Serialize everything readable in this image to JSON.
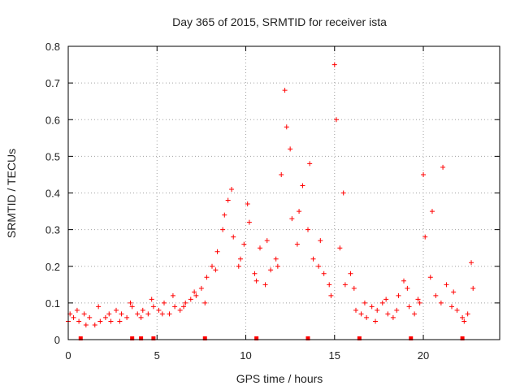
{
  "chart_data": {
    "type": "scatter",
    "title": "Day 365 of 2015, SRMTID for receiver ista",
    "xlabel": "GPS time / hours",
    "ylabel": "SRMTID / TECUs",
    "xlim": [
      0,
      24.3
    ],
    "ylim": [
      0,
      0.8
    ],
    "grid": true,
    "legend": "none",
    "x_ticks": [
      0,
      5,
      10,
      15,
      20
    ],
    "x_tick_labels": [
      "0",
      "5",
      "10",
      "15",
      "20"
    ],
    "y_ticks": [
      0,
      0.1,
      0.2,
      0.3,
      0.4,
      0.5,
      0.6,
      0.7,
      0.8
    ],
    "y_tick_labels": [
      "0",
      "0.1",
      "0.2",
      "0.3",
      "0.4",
      "0.5",
      "0.6",
      "0.7",
      "0.8"
    ],
    "marker_color": "#ff0000",
    "marker": "+",
    "series": [
      {
        "name": "SRMTID",
        "x": [
          0.0,
          0.3,
          0.6,
          0.9,
          1.2,
          1.5,
          1.8,
          2.1,
          2.4,
          2.7,
          3.0,
          3.3,
          3.6,
          3.9,
          4.2,
          4.5,
          4.8,
          5.1,
          5.4,
          5.7,
          6.0,
          6.3,
          6.6,
          6.9,
          7.2,
          7.5,
          7.8,
          8.1,
          8.4,
          8.7,
          9.0,
          9.3,
          9.6,
          9.9,
          10.2,
          10.5,
          10.8,
          11.1,
          11.4,
          11.7,
          12.0,
          12.3,
          12.6,
          12.9,
          13.2,
          13.5,
          13.8,
          14.1,
          14.4,
          14.7,
          15.0,
          15.3,
          15.6,
          15.9,
          16.2,
          16.5,
          16.8,
          17.1,
          17.4,
          17.7,
          18.0,
          18.3,
          18.6,
          18.9,
          19.2,
          19.5,
          19.8,
          20.1,
          20.4,
          20.7,
          21.0,
          21.3,
          21.6,
          21.9,
          22.2,
          22.5,
          22.8,
          0.1,
          0.5,
          1.0,
          1.7,
          2.3,
          2.9,
          3.5,
          4.1,
          4.7,
          5.3,
          5.9,
          6.5,
          7.1,
          7.7,
          8.3,
          8.8,
          9.2,
          9.7,
          10.1,
          10.6,
          11.2,
          11.8,
          12.2,
          12.5,
          13.0,
          13.6,
          14.2,
          14.8,
          15.1,
          15.5,
          16.1,
          16.7,
          17.3,
          17.9,
          18.5,
          19.1,
          19.7,
          20.0,
          20.5,
          21.1,
          21.7,
          22.3,
          22.7
        ],
        "y": [
          0.05,
          0.06,
          0.05,
          0.07,
          0.06,
          0.04,
          0.05,
          0.06,
          0.05,
          0.08,
          0.07,
          0.06,
          0.09,
          0.07,
          0.08,
          0.07,
          0.09,
          0.08,
          0.1,
          0.07,
          0.09,
          0.08,
          0.1,
          0.11,
          0.12,
          0.14,
          0.17,
          0.2,
          0.24,
          0.3,
          0.38,
          0.28,
          0.2,
          0.26,
          0.32,
          0.18,
          0.25,
          0.15,
          0.19,
          0.22,
          0.45,
          0.58,
          0.33,
          0.26,
          0.42,
          0.3,
          0.22,
          0.2,
          0.18,
          0.15,
          0.75,
          0.25,
          0.15,
          0.18,
          0.08,
          0.07,
          0.06,
          0.09,
          0.08,
          0.1,
          0.07,
          0.06,
          0.12,
          0.16,
          0.09,
          0.07,
          0.1,
          0.28,
          0.17,
          0.12,
          0.1,
          0.15,
          0.09,
          0.08,
          0.06,
          0.07,
          0.14,
          0.07,
          0.08,
          0.04,
          0.09,
          0.07,
          0.05,
          0.1,
          0.06,
          0.11,
          0.07,
          0.12,
          0.09,
          0.13,
          0.1,
          0.19,
          0.34,
          0.41,
          0.22,
          0.37,
          0.16,
          0.27,
          0.2,
          0.68,
          0.52,
          0.35,
          0.48,
          0.27,
          0.12,
          0.6,
          0.4,
          0.14,
          0.1,
          0.05,
          0.11,
          0.08,
          0.14,
          0.11,
          0.45,
          0.35,
          0.47,
          0.13,
          0.05,
          0.21
        ]
      }
    ],
    "gap_markers_x": [
      0.7,
      3.6,
      4.1,
      4.8,
      7.7,
      10.6,
      13.5,
      16.4,
      19.3,
      22.2
    ]
  }
}
